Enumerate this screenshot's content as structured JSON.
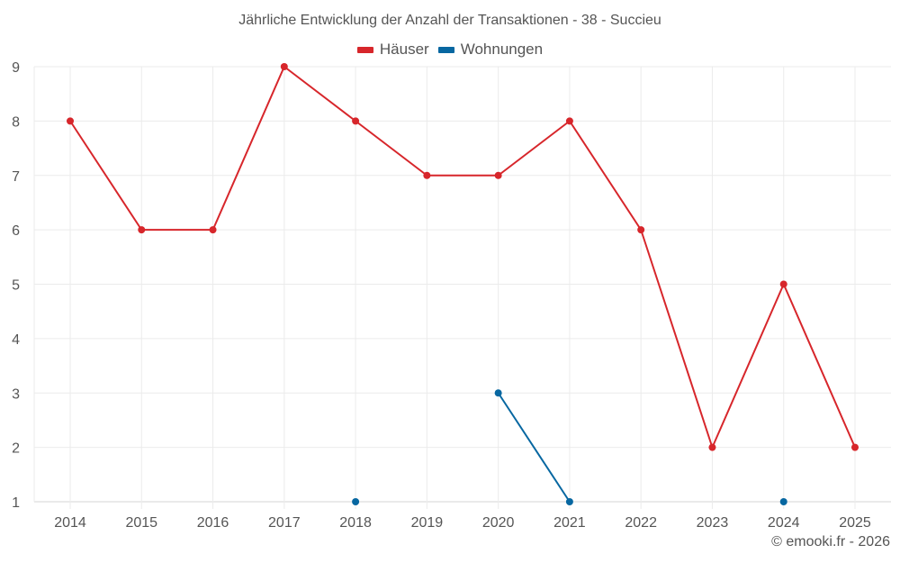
{
  "chart_data": {
    "type": "line",
    "title": "Jährliche Entwicklung der Anzahl der Transaktionen - 38 - Succieu",
    "xlabel": "",
    "ylabel": "",
    "categories": [
      "2014",
      "2015",
      "2016",
      "2017",
      "2018",
      "2019",
      "2020",
      "2021",
      "2022",
      "2023",
      "2024",
      "2025"
    ],
    "series": [
      {
        "name": "Häuser",
        "color": "#d7262b",
        "values": [
          8,
          6,
          6,
          9,
          8,
          7,
          7,
          8,
          6,
          2,
          5,
          2
        ]
      },
      {
        "name": "Wohnungen",
        "color": "#0767a1",
        "values": [
          null,
          null,
          null,
          null,
          1,
          null,
          3,
          1,
          null,
          null,
          1,
          null
        ]
      }
    ],
    "ylim": [
      1,
      9
    ],
    "yticks": [
      1,
      2,
      3,
      4,
      5,
      6,
      7,
      8,
      9
    ],
    "grid": true,
    "legend_position": "top-center"
  },
  "footer": {
    "credit": "© emooki.fr - 2026"
  },
  "colors": {
    "grid": "#ebebeb",
    "axis": "#d6d6d6",
    "text": "#555555"
  }
}
